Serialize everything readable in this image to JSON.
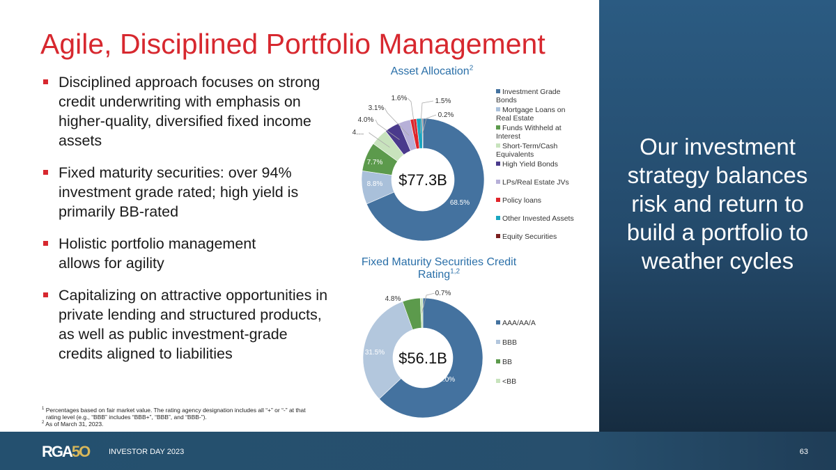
{
  "title": "Agile, Disciplined Portfolio Management",
  "bullets": [
    "Disciplined approach focuses on strong credit underwriting with emphasis on higher-quality, diversified fixed income assets",
    "Fixed maturity securities: over 94% investment grade rated; high yield is primarily BB-rated",
    "Holistic portfolio management allows for agility",
    "Capitalizing on attractive opportunities in private lending and structured products, as well as public investment-grade credits aligned to liabilities"
  ],
  "sidebar_text": "Our investment strategy balances risk and return to build a portfolio to weather cycles",
  "footnotes": {
    "note1": "Percentages based on fair market value. The rating agency designation includes all “+” or “-” at that rating level (e.g., “BBB” includes “BBB+”, “BBB”, and “BBB-”).",
    "note2": "As of March 31, 2023."
  },
  "footer": {
    "logo": "RGA50",
    "event": "INVESTOR DAY 2023",
    "page": "63"
  },
  "chart_data": [
    {
      "type": "pie",
      "variant": "donut",
      "title": "Asset Allocation",
      "title_sup": "2",
      "center_label": "$77.3B",
      "legend_position": "right",
      "categories": [
        "Investment Grade Bonds",
        "Mortgage Loans on Real Estate",
        "Funds Withheld at Interest",
        "Short-Term/Cash Equivalents",
        "High Yield Bonds",
        "LPs/Real Estate JVs",
        "Policy loans",
        "Other Invested Assets",
        "Equity Securities"
      ],
      "values": [
        68.5,
        8.8,
        7.7,
        4.6,
        4.0,
        3.1,
        1.6,
        1.5,
        0.2
      ],
      "labels": [
        "68.5%",
        "8.8%",
        "7.7%",
        "4....",
        "4.0%",
        "3.1%",
        "1.6%",
        "1.5%",
        "0.2%"
      ],
      "colors": [
        "#44729f",
        "#a9c0da",
        "#5c9a4c",
        "#c8e3bd",
        "#4a3a8c",
        "#b7b0d8",
        "#e0242a",
        "#1aa6c0",
        "#7a1f1f"
      ]
    },
    {
      "type": "pie",
      "variant": "donut",
      "title": "Fixed Maturity Securities Credit Rating",
      "title_sup": "1,2",
      "center_label": "$56.1B",
      "legend_position": "right",
      "categories": [
        "AAA/AA/A",
        "BBB",
        "BB",
        "<BB"
      ],
      "values": [
        63.0,
        31.5,
        4.8,
        0.7
      ],
      "labels": [
        "63.0%",
        "31.5%",
        "4.8%",
        "0.7%"
      ],
      "colors": [
        "#44729f",
        "#b3c7dd",
        "#5c9a4c",
        "#c8e3bd"
      ]
    }
  ]
}
